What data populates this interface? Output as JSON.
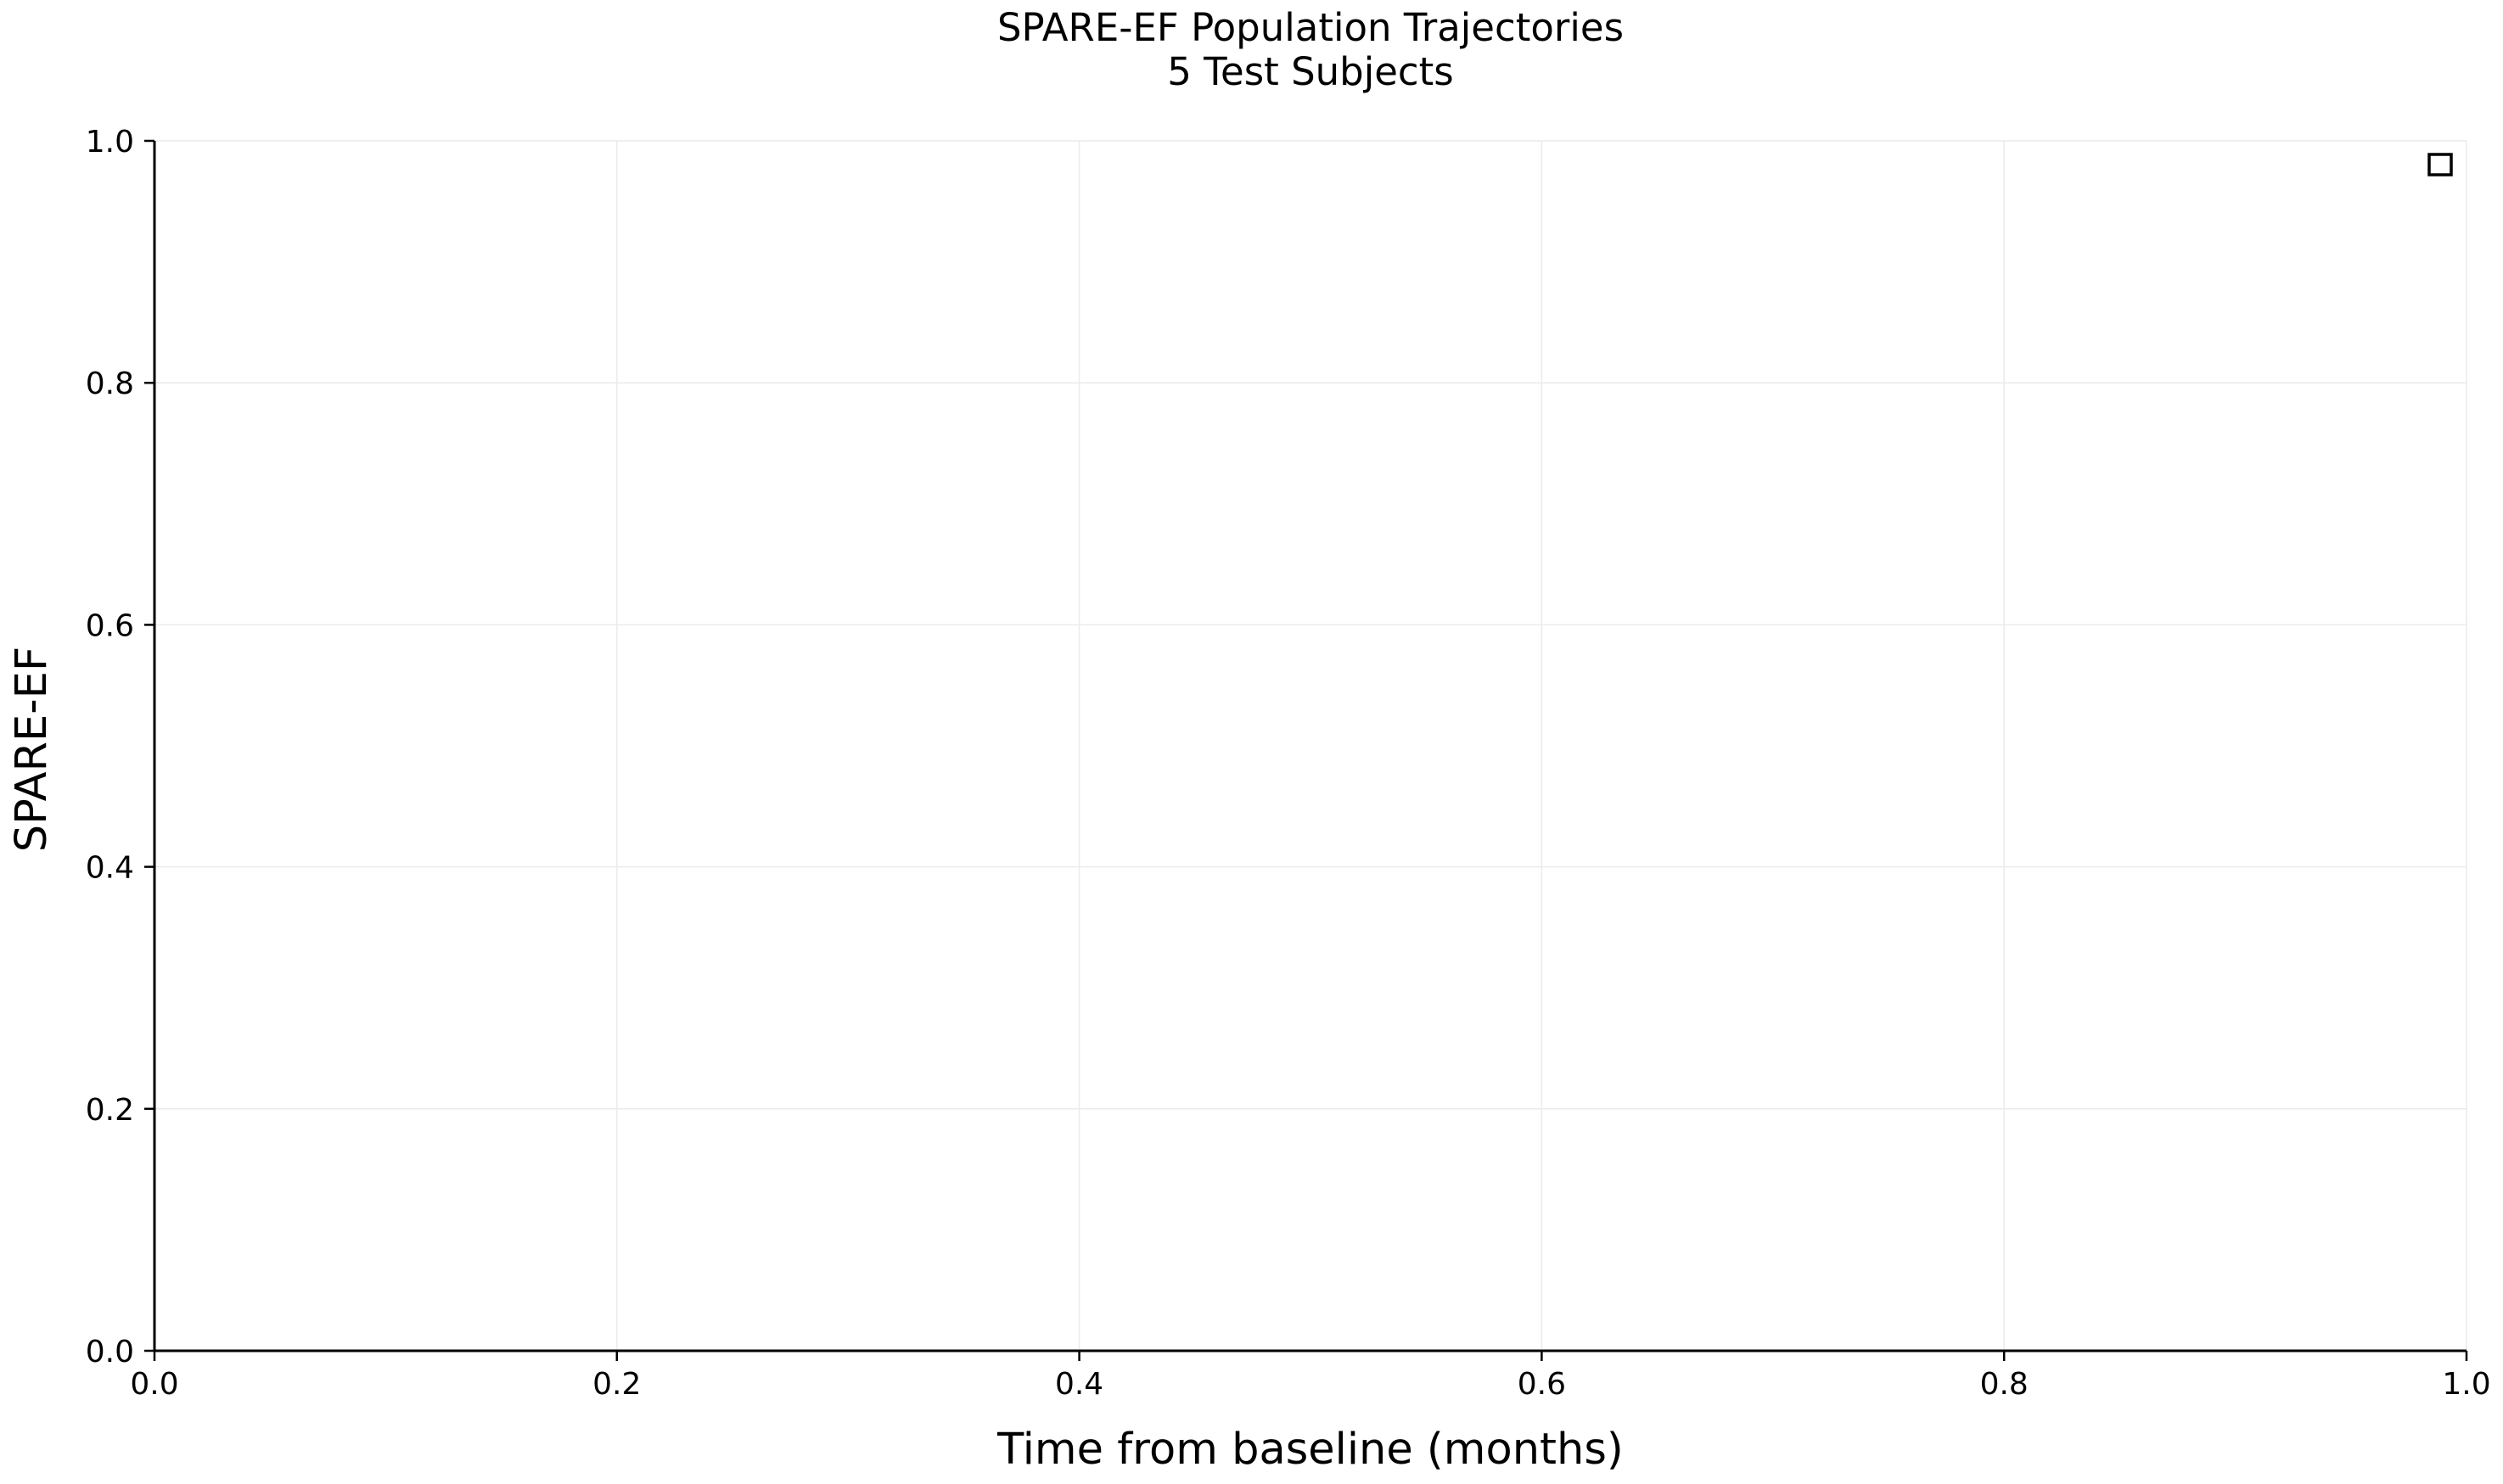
{
  "chart_data": {
    "type": "line",
    "title": "SPARE-EF Population Trajectories",
    "subtitle": "5 Test Subjects",
    "xlabel": "Time from baseline (months)",
    "ylabel": "SPARE-EF",
    "xlim": [
      0.0,
      1.0
    ],
    "ylim": [
      0.0,
      1.0
    ],
    "x_ticks": [
      "0.0",
      "0.2",
      "0.4",
      "0.6",
      "0.8",
      "1.0"
    ],
    "y_ticks": [
      "0.0",
      "0.2",
      "0.4",
      "0.6",
      "0.8",
      "1.0"
    ],
    "grid": true,
    "legend": {
      "placement": "top-right",
      "entries": []
    },
    "series": []
  },
  "colors": {
    "axis": "#000000",
    "grid": "#ebebeb",
    "background": "#ffffff"
  }
}
